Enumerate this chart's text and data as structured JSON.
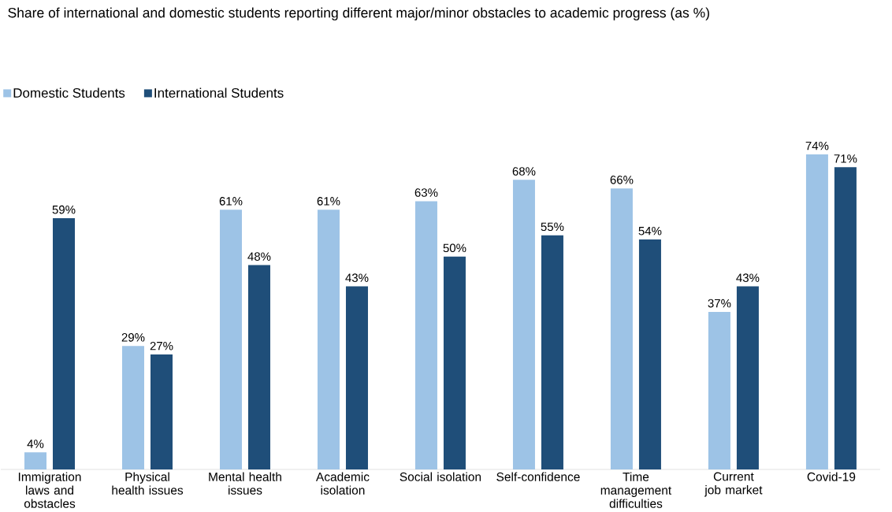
{
  "chart_data": {
    "type": "bar",
    "title": "Share of international and domestic students reporting different major/minor obstacles to academic progress (as %)",
    "categories": [
      "Immigration laws and obstacles",
      "Physical health issues",
      "Mental health issues",
      "Academic isolation",
      "Social isolation",
      "Self-confidence",
      "Time management difficulties",
      "Current job market",
      "Covid-19"
    ],
    "series": [
      {
        "name": "Domestic Students",
        "color": "#9dc3e6",
        "values": [
          4,
          29,
          61,
          61,
          63,
          68,
          66,
          37,
          74
        ],
        "value_labels": [
          "4%",
          "29%",
          "61%",
          "61%",
          "63%",
          "68%",
          "66%",
          "37%",
          "74%"
        ]
      },
      {
        "name": "International Students",
        "color": "#1f4e79",
        "values": [
          59,
          27,
          48,
          43,
          50,
          55,
          54,
          43,
          71
        ],
        "value_labels": [
          "59%",
          "27%",
          "48%",
          "43%",
          "50%",
          "55%",
          "54%",
          "43%",
          "71%"
        ]
      }
    ],
    "legend": "top left",
    "tick_labels": "x"
  }
}
